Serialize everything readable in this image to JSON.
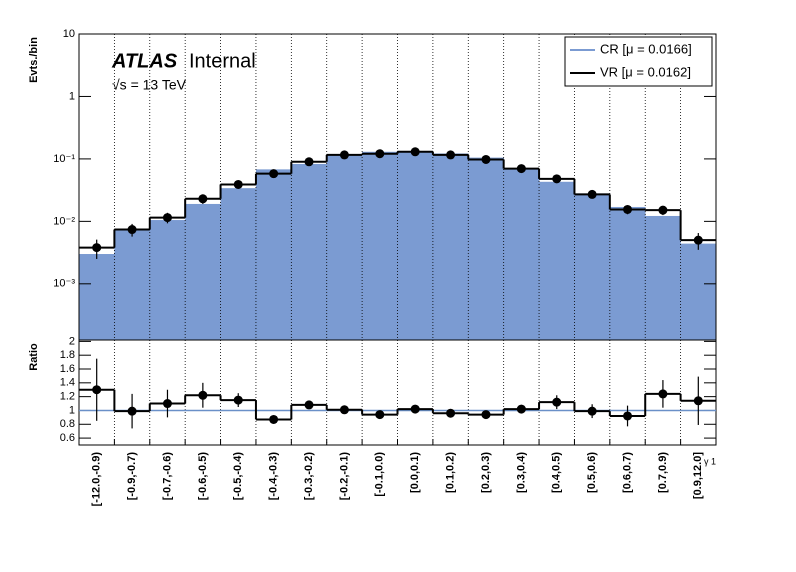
{
  "chart_data": [
    {
      "type": "step",
      "ylabel": "Evts./bin",
      "annotations": [
        "ATLAS",
        "Internal",
        "√s = 13 TeV"
      ],
      "categories": [
        "[-12.0,-0.9)",
        "[-0.9,-0.7)",
        "[-0.7,-0.6)",
        "[-0.6,-0.5)",
        "[-0.5,-0.4)",
        "[-0.4,-0.3)",
        "[-0.3,-0.2)",
        "[-0.2,-0.1)",
        "[-0.1,0.0)",
        "[0.0,0.1)",
        "[0.1,0.2)",
        "[0.2,0.3)",
        "[0.3,0.4)",
        "[0.4,0.5)",
        "[0.5,0.6)",
        "[0.6,0.7)",
        "[0.7,0.9)",
        "[0.9,12.0]"
      ],
      "series": [
        {
          "name": "CR [μ = 0.0166]",
          "color": "#7b9bd2",
          "values": [
            0.003,
            0.0075,
            0.0105,
            0.019,
            0.034,
            0.068,
            0.083,
            0.114,
            0.13,
            0.127,
            0.122,
            0.105,
            0.069,
            0.043,
            0.028,
            0.017,
            0.0122,
            0.0044
          ]
        },
        {
          "name": "VR [μ = 0.0162]",
          "color": "#000000",
          "values": [
            0.0038,
            0.0074,
            0.0115,
            0.023,
            0.039,
            0.058,
            0.09,
            0.116,
            0.121,
            0.13,
            0.116,
            0.098,
            0.07,
            0.048,
            0.027,
            0.0155,
            0.0151,
            0.005
          ],
          "errors": [
            0.0013,
            0.0017,
            0.0022,
            0.004,
            0.004,
            0.003,
            0.004,
            0.004,
            0.004,
            0.004,
            0.004,
            0.004,
            0.004,
            0.005,
            0.003,
            0.0025,
            0.0025,
            0.0015
          ]
        }
      ],
      "log_y": true,
      "ylim": [
        0.000126,
        10
      ],
      "yticks": [
        {
          "value": 0.001,
          "label": "10⁻³"
        },
        {
          "value": 0.01,
          "label": "10⁻²"
        },
        {
          "value": 0.1,
          "label": "10⁻¹"
        },
        1,
        10
      ],
      "grid": true,
      "legend": "upper right"
    },
    {
      "type": "ratio",
      "ylabel": "Ratio",
      "xlabel": "γ 1",
      "color": "#000000",
      "values": [
        1.3,
        0.99,
        1.1,
        1.22,
        1.15,
        0.87,
        1.08,
        1.01,
        0.94,
        1.02,
        0.96,
        0.94,
        1.02,
        1.12,
        0.99,
        0.92,
        1.24,
        1.14
      ],
      "errors": [
        0.45,
        0.25,
        0.2,
        0.18,
        0.1,
        0.05,
        0.05,
        0.04,
        0.04,
        0.04,
        0.04,
        0.04,
        0.06,
        0.1,
        0.1,
        0.15,
        0.2,
        0.35
      ],
      "reference_line": 1,
      "reference_color": "#6a90c8",
      "ylim": [
        0.5,
        2.02
      ],
      "yticks": [
        0.6,
        0.8,
        1,
        1.2,
        1.4,
        1.6,
        1.8,
        2
      ],
      "grid": true
    }
  ]
}
